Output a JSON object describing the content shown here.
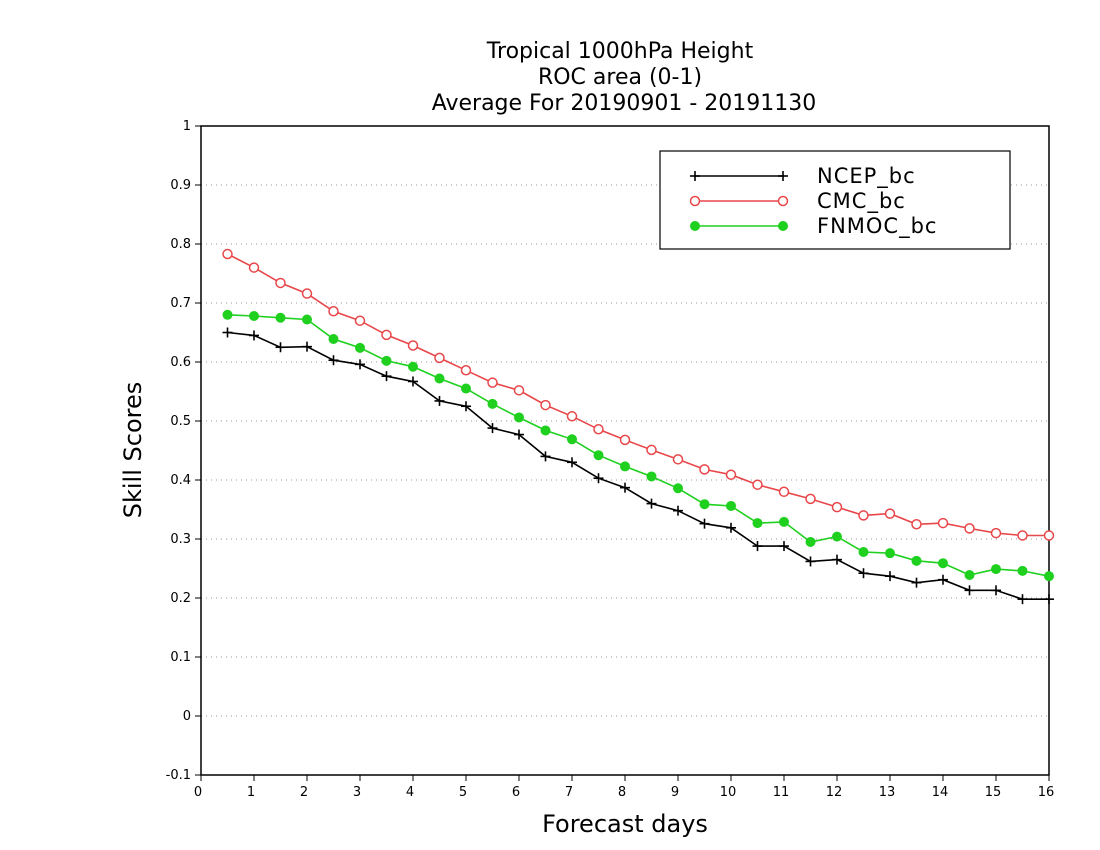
{
  "chart_data": {
    "type": "line",
    "title_lines": [
      "Tropical 1000hPa Height",
      "ROC area (0-1)",
      "Average For 20190901 - 20191130"
    ],
    "xlabel": "Forecast days",
    "ylabel": "Skill Scores",
    "xlim": [
      0,
      16
    ],
    "ylim": [
      -0.1,
      1
    ],
    "x_ticks": [
      0,
      1,
      2,
      3,
      4,
      5,
      6,
      7,
      8,
      9,
      10,
      11,
      12,
      13,
      14,
      15,
      16
    ],
    "x_tick_labels": [
      "0",
      "1",
      "2",
      "3",
      "4",
      "5",
      "6",
      "7",
      "8",
      "9",
      "10",
      "11",
      "12",
      "13",
      "14",
      "15",
      "16"
    ],
    "y_ticks": [
      -0.1,
      0,
      0.1,
      0.2,
      0.3,
      0.4,
      0.5,
      0.6,
      0.7,
      0.8,
      0.9,
      1
    ],
    "y_tick_labels": [
      "-0.1",
      "0",
      "0.1",
      "0.2",
      "0.3",
      "0.4",
      "0.5",
      "0.6",
      "0.7",
      "0.8",
      "0.9",
      "1"
    ],
    "grid": "horizontal dotted",
    "legend_position": "top-right",
    "x": [
      0.5,
      1,
      1.5,
      2,
      2.5,
      3,
      3.5,
      4,
      4.5,
      5,
      5.5,
      6,
      6.5,
      7,
      7.5,
      8,
      8.5,
      9,
      9.5,
      10,
      10.5,
      11,
      11.5,
      12,
      12.5,
      13,
      13.5,
      14,
      14.5,
      15,
      15.5,
      16
    ],
    "series": [
      {
        "name": "NCEP_bc",
        "color": "#000000",
        "marker": "plus",
        "values": [
          0.65,
          0.645,
          0.625,
          0.626,
          0.603,
          0.596,
          0.576,
          0.567,
          0.534,
          0.525,
          0.488,
          0.477,
          0.44,
          0.43,
          0.403,
          0.387,
          0.36,
          0.348,
          0.326,
          0.319,
          0.288,
          0.288,
          0.262,
          0.265,
          0.242,
          0.237,
          0.226,
          0.231,
          0.213,
          0.213,
          0.198,
          0.198
        ]
      },
      {
        "name": "CMC_bc",
        "color": "#e8474a",
        "marker": "open-circle",
        "values": [
          0.783,
          0.76,
          0.734,
          0.716,
          0.686,
          0.67,
          0.646,
          0.628,
          0.607,
          0.586,
          0.565,
          0.552,
          0.527,
          0.508,
          0.486,
          0.468,
          0.451,
          0.435,
          0.418,
          0.409,
          0.392,
          0.38,
          0.368,
          0.354,
          0.34,
          0.343,
          0.325,
          0.327,
          0.318,
          0.31,
          0.306,
          0.306
        ]
      },
      {
        "name": "FNMOC_bc",
        "color": "#1fd01f",
        "marker": "filled-circle",
        "values": [
          0.68,
          0.678,
          0.675,
          0.672,
          0.639,
          0.624,
          0.602,
          0.592,
          0.572,
          0.555,
          0.529,
          0.506,
          0.484,
          0.469,
          0.442,
          0.423,
          0.406,
          0.386,
          0.359,
          0.356,
          0.327,
          0.329,
          0.295,
          0.304,
          0.278,
          0.276,
          0.263,
          0.259,
          0.239,
          0.249,
          0.246,
          0.237
        ]
      }
    ]
  }
}
